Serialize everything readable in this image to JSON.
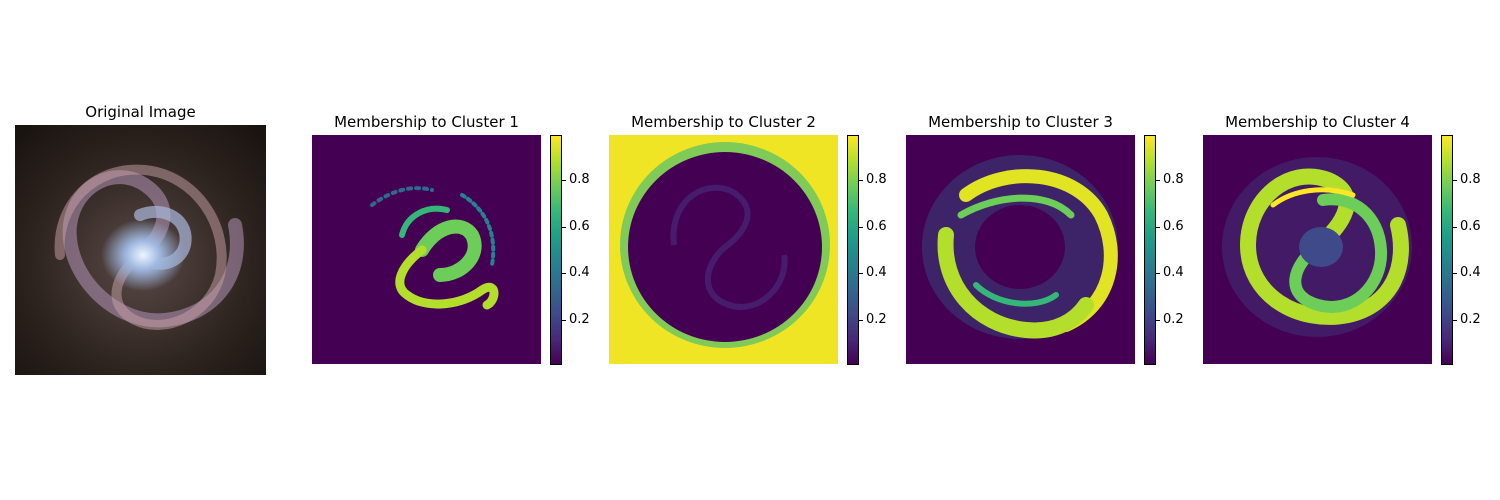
{
  "chart_data": {
    "type": "heatmap",
    "panels": [
      {
        "title": "Original Image",
        "kind": "image"
      },
      {
        "title": "Membership to Cluster 1",
        "kind": "membership",
        "cluster": 1
      },
      {
        "title": "Membership to Cluster 2",
        "kind": "membership",
        "cluster": 2
      },
      {
        "title": "Membership to Cluster 3",
        "kind": "membership",
        "cluster": 3
      },
      {
        "title": "Membership to Cluster 4",
        "kind": "membership",
        "cluster": 4
      }
    ],
    "colorbar": {
      "colormap": "viridis",
      "range": [
        0.01,
        0.99
      ],
      "ticks": [
        0.2,
        0.4,
        0.6,
        0.8
      ],
      "tick_labels": [
        "0.2",
        "0.4",
        "0.6",
        "0.8"
      ]
    }
  },
  "colors": {
    "viridis_low": "#440154",
    "viridis_high": "#fde725",
    "galaxy_core": "#cfe3ff",
    "galaxy_arm": "#b596b8",
    "galaxy_bg": "#2a1f1a"
  }
}
